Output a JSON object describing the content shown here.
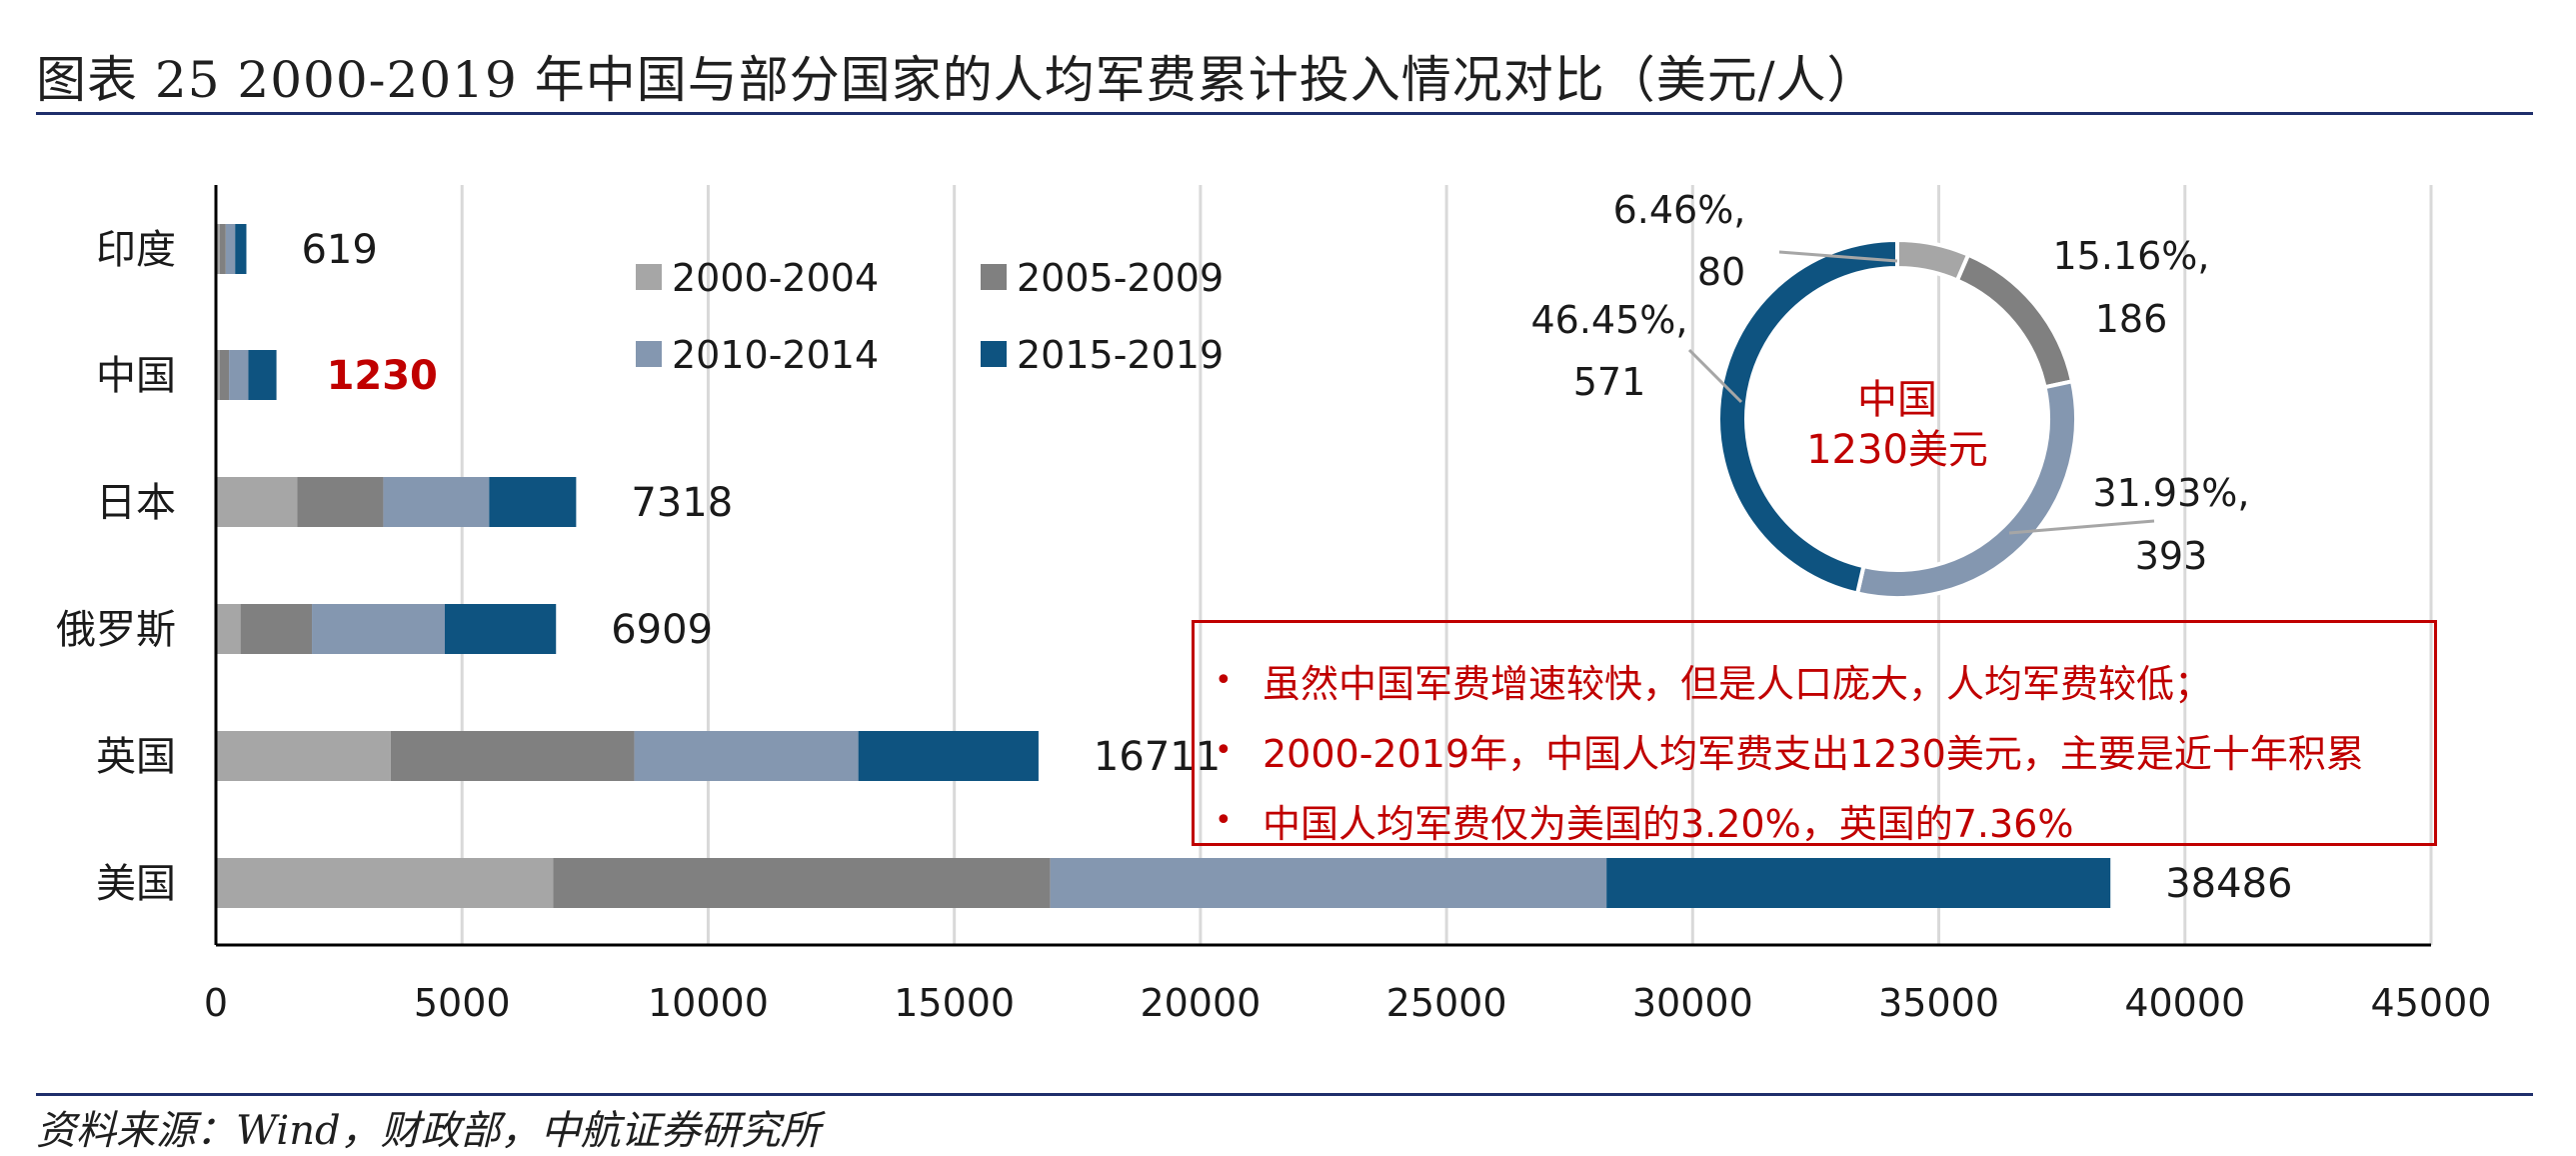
{
  "title": "图表 25 2000-2019 年中国与部分国家的人均军费累计投入情况对比（美元/人）",
  "source": "资料来源：Wind，财政部，中航证券研究所",
  "colors": {
    "2000-2004": "#a6a6a6",
    "2005-2009": "#808080",
    "2010-2014": "#8497b0",
    "2015-2019": "#0e5380",
    "highlight": "#c00000",
    "rule": "#1f2f6b",
    "grid": "#d9d9d9"
  },
  "chart_data": [
    {
      "type": "bar",
      "orientation": "horizontal",
      "stacked": true,
      "categories": [
        "印度",
        "中国",
        "日本",
        "俄罗斯",
        "英国",
        "美国"
      ],
      "series": [
        {
          "name": "2000-2004",
          "values": [
            80,
            80,
            1650,
            500,
            3550,
            6850
          ]
        },
        {
          "name": "2005-2009",
          "values": [
            120,
            186,
            1750,
            1450,
            4950,
            10100
          ]
        },
        {
          "name": "2010-2014",
          "values": [
            190,
            393,
            2150,
            2700,
            4550,
            11300
          ]
        },
        {
          "name": "2015-2019",
          "values": [
            229,
            571,
            1768,
            2259,
            3661,
            10236
          ]
        }
      ],
      "totals": [
        "619",
        "1230",
        "7318",
        "6909",
        "16711",
        "38486"
      ],
      "highlight_category": "中国",
      "xlim": [
        0,
        45000
      ],
      "xticks": [
        "0",
        "5000",
        "10000",
        "15000",
        "20000",
        "25000",
        "30000",
        "35000",
        "40000",
        "45000"
      ],
      "grid": "vertical",
      "legend_position": "top, upper-left area"
    },
    {
      "type": "pie",
      "donut": true,
      "center_label": [
        "中国",
        "1230美元"
      ],
      "slices": [
        {
          "name": "2000-2004",
          "value": 80,
          "percent": "6.46%",
          "label_value": "80"
        },
        {
          "name": "2005-2009",
          "value": 186,
          "percent": "15.16%",
          "label_value": "186"
        },
        {
          "name": "2010-2014",
          "value": 393,
          "percent": "31.93%",
          "label_value": "393"
        },
        {
          "name": "2015-2019",
          "value": 571,
          "percent": "46.45%",
          "label_value": "571"
        }
      ]
    }
  ],
  "callout": {
    "bullet": "•",
    "notes": [
      "虽然中国军费增速较快，但是人口庞大，人均军费较低；",
      "2000-2019年，中国人均军费支出1230美元，主要是近十年积累",
      "中国人均军费仅为美国的3.20%，英国的7.36%"
    ]
  }
}
